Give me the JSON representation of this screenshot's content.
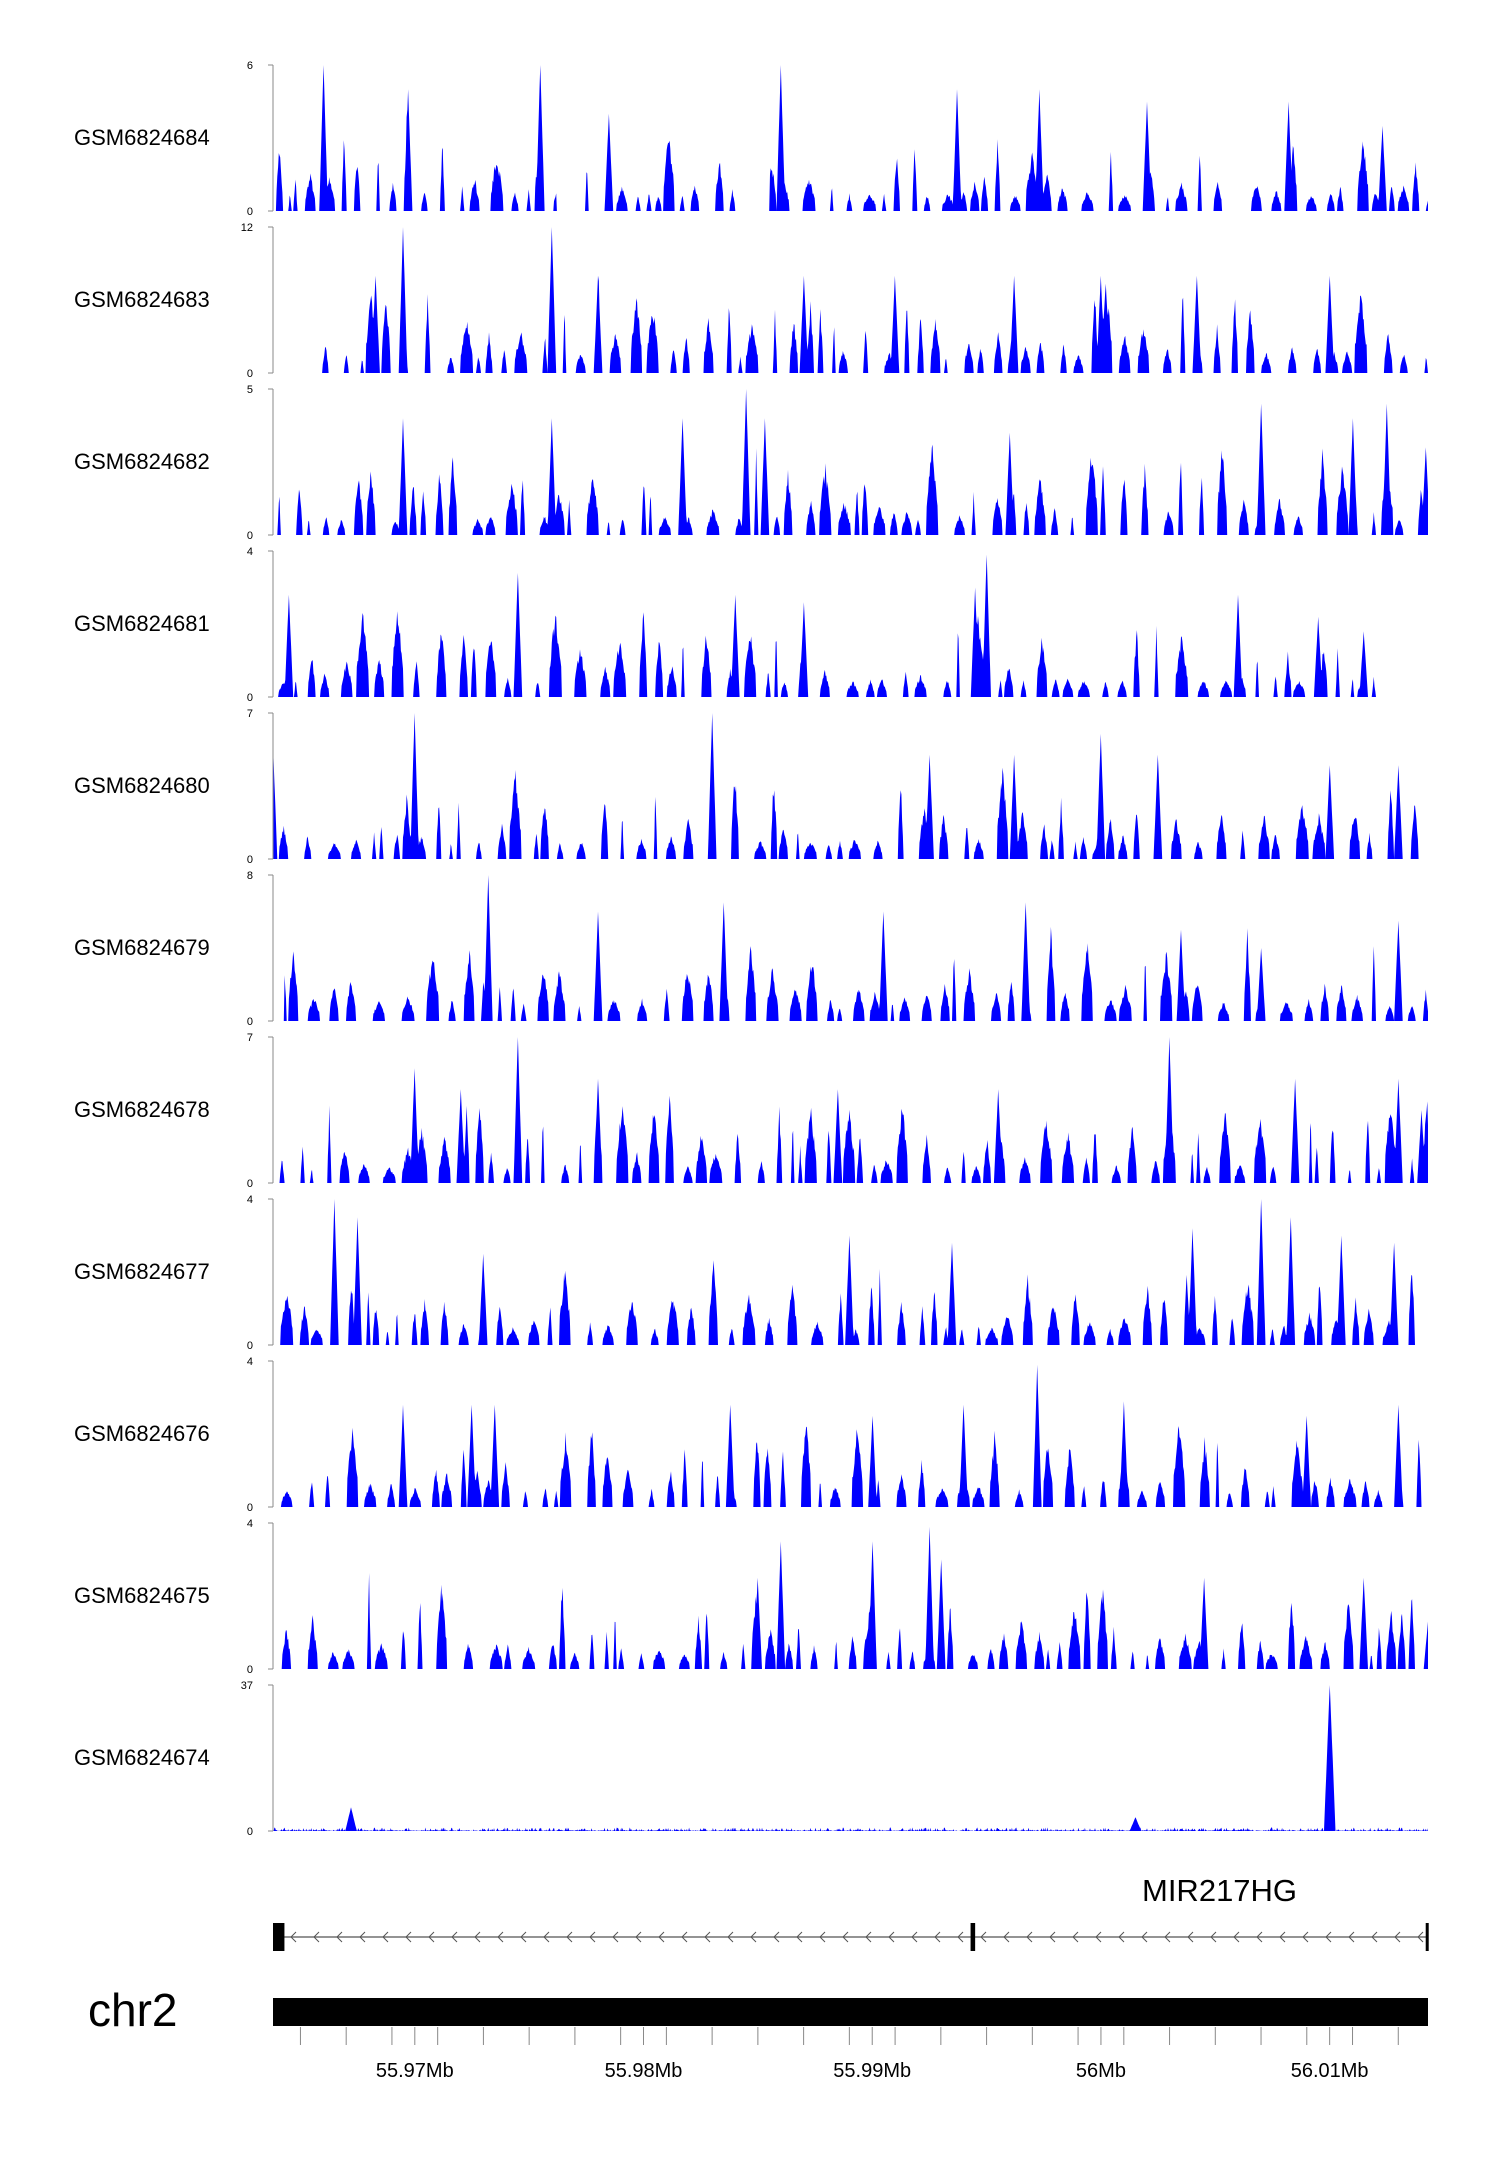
{
  "chart_data": {
    "type": "area",
    "xlabel": "",
    "ylabel": "",
    "region": {
      "chromosome": "chr2",
      "start_mb": 55.9638,
      "end_mb": 56.0143
    },
    "x_axis": {
      "ticks": [
        55.965,
        55.967,
        55.969,
        55.971,
        55.973,
        55.975,
        55.977,
        55.979,
        55.981,
        55.983,
        55.985,
        55.987,
        55.989,
        55.991,
        55.993,
        55.995,
        55.997,
        55.999,
        56.001,
        56.003,
        56.005,
        56.007,
        56.009,
        56.011,
        56.013
      ],
      "labeled_ticks": [
        55.97,
        55.98,
        55.99,
        56.0,
        56.01
      ],
      "labels": [
        "55.97Mb",
        "55.98Mb",
        "55.99Mb",
        "56Mb",
        "56.01Mb"
      ]
    },
    "series": [
      {
        "name": "GSM6824684",
        "ymin_label": "0",
        "ymax_label": "6",
        "ylim": [
          0,
          6
        ],
        "color": "#0000ff",
        "peaks": [
          [
            55.966,
            6.0
          ],
          [
            55.9697,
            5.0
          ],
          [
            55.9755,
            6.0
          ],
          [
            55.9785,
            4.0
          ],
          [
            55.986,
            6.0
          ],
          [
            55.9937,
            5.0
          ],
          [
            55.9973,
            5.0
          ],
          [
            56.002,
            4.5
          ],
          [
            56.0082,
            4.5
          ],
          [
            56.0123,
            3.5
          ]
        ],
        "gaps": [
          [
            55.9762,
            55.9773
          ],
          [
            55.9842,
            55.9855
          ],
          [
            56.0055,
            56.0065
          ]
        ]
      },
      {
        "name": "GSM6824683",
        "ymin_label": "0",
        "ymax_label": "12",
        "ylim": [
          0,
          12
        ],
        "color": "#0000ff",
        "peaks": [
          [
            55.9683,
            8.0
          ],
          [
            55.9695,
            12.0
          ],
          [
            55.976,
            12.0
          ],
          [
            55.978,
            8.0
          ],
          [
            55.987,
            8.0
          ],
          [
            55.991,
            8.0
          ],
          [
            55.9962,
            8.0
          ],
          [
            56.0,
            8.0
          ],
          [
            56.0042,
            8.0
          ],
          [
            56.01,
            8.0
          ]
        ],
        "gaps": [
          [
            55.9638,
            55.9655
          ]
        ]
      },
      {
        "name": "GSM6824682",
        "ymin_label": "0",
        "ymax_label": "5",
        "ylim": [
          0,
          5
        ],
        "color": "#0000ff",
        "peaks": [
          [
            55.9695,
            4.0
          ],
          [
            55.976,
            4.0
          ],
          [
            55.9817,
            4.0
          ],
          [
            55.9845,
            5.0
          ],
          [
            55.9853,
            4.0
          ],
          [
            55.996,
            3.5
          ],
          [
            56.007,
            4.5
          ],
          [
            56.011,
            4.0
          ],
          [
            56.0125,
            4.5
          ],
          [
            56.0142,
            3.0
          ]
        ],
        "gaps": []
      },
      {
        "name": "GSM6824681",
        "ymin_label": "0",
        "ymax_label": "4",
        "ylim": [
          0,
          4
        ],
        "color": "#0000ff",
        "peaks": [
          [
            55.9645,
            2.8
          ],
          [
            55.9745,
            3.4
          ],
          [
            55.984,
            2.8
          ],
          [
            55.987,
            2.6
          ],
          [
            55.9945,
            3.0
          ],
          [
            55.995,
            3.9
          ],
          [
            56.006,
            2.8
          ],
          [
            56.0095,
            2.2
          ],
          [
            56.0115,
            1.8
          ]
        ],
        "gaps": [
          [
            56.012,
            56.0143
          ]
        ]
      },
      {
        "name": "GSM6824680",
        "ymin_label": "0",
        "ymax_label": "7",
        "ylim": [
          0,
          7
        ],
        "color": "#0000ff",
        "peaks": [
          [
            55.9638,
            5.5
          ],
          [
            55.97,
            7.0
          ],
          [
            55.983,
            7.0
          ],
          [
            55.9925,
            5.0
          ],
          [
            55.9962,
            5.0
          ],
          [
            56.0,
            6.0
          ],
          [
            56.0025,
            5.0
          ],
          [
            56.01,
            4.5
          ],
          [
            56.013,
            4.5
          ]
        ],
        "gaps": []
      },
      {
        "name": "GSM6824679",
        "ymin_label": "0",
        "ymax_label": "8",
        "ylim": [
          0,
          8
        ],
        "color": "#0000ff",
        "peaks": [
          [
            55.9732,
            8.0
          ],
          [
            55.978,
            6.0
          ],
          [
            55.9835,
            6.5
          ],
          [
            55.9905,
            6.0
          ],
          [
            55.9967,
            6.5
          ],
          [
            56.0035,
            5.0
          ],
          [
            56.007,
            4.0
          ],
          [
            56.013,
            5.5
          ]
        ],
        "gaps": [
          [
            55.9638,
            55.9643
          ]
        ]
      },
      {
        "name": "GSM6824678",
        "ymin_label": "0",
        "ymax_label": "7",
        "ylim": [
          0,
          7
        ],
        "color": "#0000ff",
        "peaks": [
          [
            55.97,
            5.5
          ],
          [
            55.972,
            4.5
          ],
          [
            55.9745,
            7.0
          ],
          [
            55.978,
            5.0
          ],
          [
            55.9885,
            4.5
          ],
          [
            55.9955,
            4.5
          ],
          [
            56.003,
            7.0
          ],
          [
            56.0085,
            5.0
          ],
          [
            56.013,
            5.0
          ],
          [
            56.014,
            3.5
          ]
        ],
        "gaps": []
      },
      {
        "name": "GSM6824677",
        "ymin_label": "0",
        "ymax_label": "4",
        "ylim": [
          0,
          4
        ],
        "color": "#0000ff",
        "peaks": [
          [
            55.9665,
            4.0
          ],
          [
            55.9675,
            3.5
          ],
          [
            55.973,
            2.5
          ],
          [
            55.989,
            3.0
          ],
          [
            55.9935,
            2.8
          ],
          [
            56.004,
            3.2
          ],
          [
            56.007,
            4.0
          ],
          [
            56.0083,
            3.5
          ],
          [
            56.0105,
            3.0
          ],
          [
            56.0128,
            2.8
          ]
        ],
        "gaps": []
      },
      {
        "name": "GSM6824676",
        "ymin_label": "0",
        "ymax_label": "4",
        "ylim": [
          0,
          4
        ],
        "color": "#0000ff",
        "peaks": [
          [
            55.9695,
            2.8
          ],
          [
            55.9725,
            2.8
          ],
          [
            55.9735,
            2.8
          ],
          [
            55.9838,
            2.8
          ],
          [
            55.99,
            2.5
          ],
          [
            55.994,
            2.8
          ],
          [
            55.9972,
            3.9
          ],
          [
            56.001,
            2.9
          ],
          [
            56.009,
            2.5
          ],
          [
            56.013,
            2.8
          ]
        ],
        "gaps": []
      },
      {
        "name": "GSM6824675",
        "ymin_label": "0",
        "ymax_label": "4",
        "ylim": [
          0,
          4
        ],
        "color": "#0000ff",
        "peaks": [
          [
            55.986,
            3.5
          ],
          [
            55.985,
            2.5
          ],
          [
            55.99,
            3.5
          ],
          [
            55.9925,
            3.9
          ],
          [
            55.993,
            3.0
          ],
          [
            56.0045,
            2.5
          ],
          [
            56.0115,
            2.5
          ],
          [
            56.0143,
            1.3
          ]
        ],
        "gaps": []
      },
      {
        "name": "GSM6824674",
        "ymin_label": "0",
        "ymax_label": "37",
        "ylim": [
          0,
          37
        ],
        "color": "#0000ff",
        "peaks": [
          [
            55.9672,
            6.0
          ],
          [
            56.0015,
            3.5
          ],
          [
            56.01,
            37.0
          ]
        ],
        "gaps": []
      }
    ],
    "gene_track": {
      "gene": "MIR217HG",
      "strand": "-",
      "start_mb": 55.9638,
      "end_mb": 56.0143,
      "exons": [
        [
          55.9638,
          55.9643
        ],
        [
          55.9943,
          55.9945
        ],
        [
          56.0142,
          56.0143
        ]
      ]
    },
    "ideogram": {
      "label": "chr2"
    }
  }
}
